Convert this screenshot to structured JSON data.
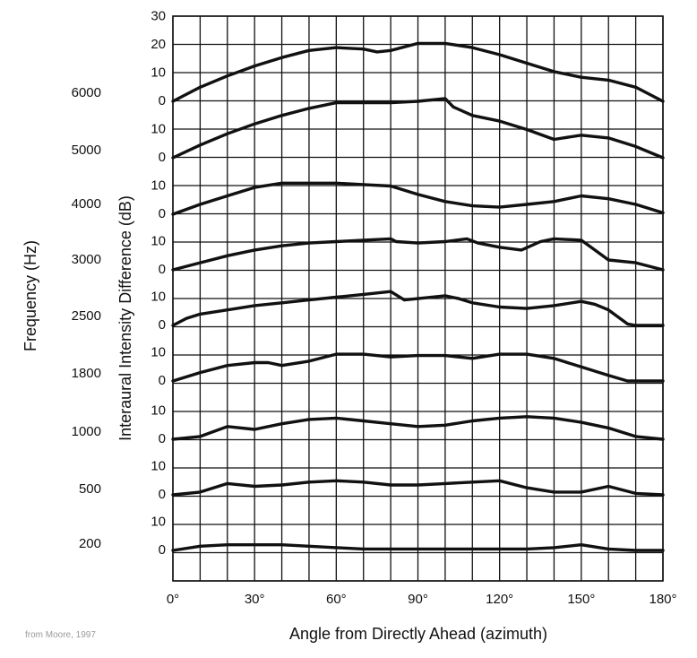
{
  "chart_data": {
    "type": "line",
    "xlabel": "Angle from Directly Ahead (azimuth)",
    "ylabel": "Interaural Intensity Difference (dB)",
    "group_label": "Frequency (Hz)",
    "credit": "from Moore, 1997",
    "x_ticks": [
      "0°",
      "30°",
      "60°",
      "90°",
      "120°",
      "150°",
      "180°"
    ],
    "xlim": [
      0,
      180
    ],
    "series": [
      {
        "name": "6000",
        "tick_labels": [
          "0",
          "10",
          "20",
          "30"
        ],
        "ylim": [
          0,
          30
        ],
        "x": [
          0,
          10,
          20,
          30,
          40,
          50,
          60,
          70,
          75,
          80,
          90,
          100,
          110,
          120,
          130,
          140,
          150,
          160,
          170,
          180
        ],
        "y": [
          0,
          5,
          9,
          12.5,
          15.5,
          18,
          19,
          18.5,
          17.5,
          18,
          20.5,
          20.5,
          19,
          16.5,
          13.5,
          10.5,
          8.5,
          7.5,
          5,
          0
        ]
      },
      {
        "name": "5000",
        "tick_labels": [
          "0",
          "10"
        ],
        "x": [
          0,
          10,
          20,
          30,
          40,
          50,
          60,
          70,
          80,
          90,
          100,
          103,
          110,
          120,
          130,
          140,
          150,
          160,
          170,
          180
        ],
        "y": [
          0,
          4.5,
          8.5,
          12,
          15,
          17.5,
          19.5,
          19.5,
          19.5,
          20,
          21,
          18,
          15,
          13,
          10,
          6.5,
          8,
          7,
          4,
          0
        ]
      },
      {
        "name": "4000",
        "tick_labels": [
          "0",
          "10"
        ],
        "x": [
          0,
          10,
          20,
          30,
          40,
          50,
          60,
          70,
          80,
          90,
          100,
          110,
          120,
          130,
          140,
          150,
          160,
          170,
          180
        ],
        "y": [
          0,
          3.5,
          6.5,
          9.5,
          11,
          11,
          11,
          10.5,
          10,
          7,
          4.5,
          3,
          2.5,
          3.5,
          4.5,
          6.5,
          5.5,
          3.5,
          0.5
        ]
      },
      {
        "name": "3000",
        "tick_labels": [
          "0",
          "10"
        ],
        "x": [
          0,
          10,
          20,
          30,
          40,
          50,
          60,
          70,
          80,
          82,
          90,
          100,
          108,
          112,
          120,
          128,
          135,
          140,
          150,
          155,
          160,
          170,
          180
        ],
        "y": [
          0,
          2.5,
          5,
          7,
          8.5,
          9.5,
          10,
          10.5,
          11,
          10,
          9.5,
          10,
          11,
          9.5,
          8,
          7,
          10,
          11,
          10.5,
          7,
          3.5,
          2.5,
          0
        ]
      },
      {
        "name": "2500",
        "tick_labels": [
          "0",
          "10"
        ],
        "x": [
          0,
          5,
          10,
          20,
          30,
          40,
          50,
          60,
          70,
          80,
          85,
          90,
          100,
          105,
          110,
          120,
          130,
          140,
          150,
          155,
          160,
          167,
          170,
          180
        ],
        "y": [
          0,
          2.5,
          4,
          5.5,
          7,
          8,
          9,
          10,
          11,
          12,
          9,
          9.5,
          10.5,
          9.5,
          8,
          6.5,
          6,
          7,
          8.5,
          7.5,
          5.5,
          0.5,
          0,
          0
        ]
      },
      {
        "name": "1800",
        "tick_labels": [
          "0",
          "10"
        ],
        "x": [
          0,
          10,
          20,
          30,
          35,
          40,
          50,
          60,
          70,
          80,
          90,
          100,
          110,
          120,
          130,
          140,
          150,
          160,
          167,
          170,
          180
        ],
        "y": [
          0,
          3,
          5.5,
          6.5,
          6.5,
          5.5,
          7,
          9.5,
          9.5,
          8.5,
          9,
          9,
          8,
          9.5,
          9.5,
          8,
          5,
          2,
          0,
          0,
          0
        ]
      },
      {
        "name": "1000",
        "tick_labels": [
          "0",
          "10"
        ],
        "x": [
          0,
          10,
          20,
          30,
          40,
          50,
          60,
          70,
          80,
          90,
          100,
          110,
          120,
          130,
          140,
          150,
          160,
          170,
          180
        ],
        "y": [
          0,
          1,
          4.5,
          3.5,
          5.5,
          7,
          7.5,
          6.5,
          5.5,
          4.5,
          5,
          6.5,
          7.5,
          8,
          7.5,
          6,
          4,
          1,
          0
        ]
      },
      {
        "name": "500",
        "tick_labels": [
          "0",
          "10"
        ],
        "x": [
          0,
          10,
          20,
          30,
          40,
          50,
          60,
          70,
          80,
          90,
          100,
          110,
          120,
          130,
          140,
          150,
          160,
          170,
          180
        ],
        "y": [
          0,
          1,
          4,
          3,
          3.5,
          4.5,
          5,
          4.5,
          3.5,
          3.5,
          4,
          4.5,
          5,
          2.5,
          1,
          1,
          3,
          0.5,
          0
        ]
      },
      {
        "name": "200",
        "tick_labels": [
          "0",
          "10"
        ],
        "x": [
          0,
          10,
          20,
          30,
          40,
          50,
          60,
          70,
          80,
          90,
          100,
          110,
          120,
          130,
          140,
          150,
          160,
          170,
          180
        ],
        "y": [
          0,
          1.5,
          2,
          2,
          2,
          1.5,
          1,
          0.5,
          0.5,
          0.5,
          0.5,
          0.5,
          0.5,
          0.5,
          1,
          2,
          0.5,
          0,
          0
        ]
      }
    ]
  }
}
